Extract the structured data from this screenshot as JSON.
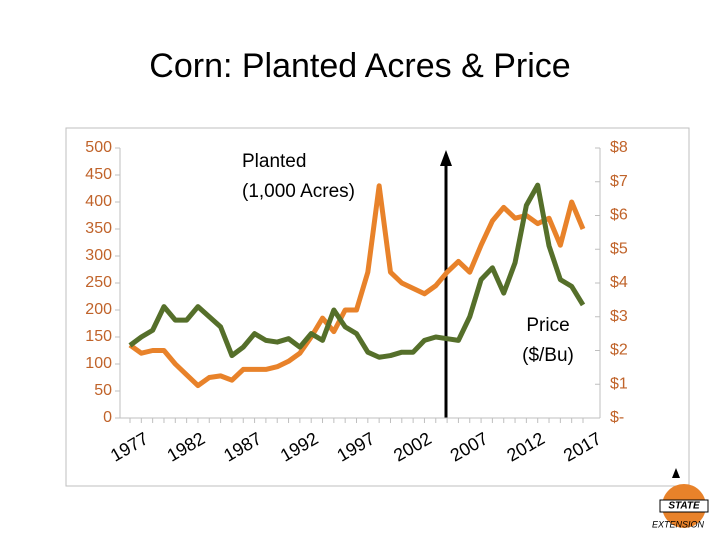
{
  "chart_data": {
    "type": "line",
    "title": "Corn: Planted Acres & Price",
    "x": [
      1977,
      1978,
      1979,
      1980,
      1981,
      1982,
      1983,
      1984,
      1985,
      1986,
      1987,
      1988,
      1989,
      1990,
      1991,
      1992,
      1993,
      1994,
      1995,
      1996,
      1997,
      1998,
      1999,
      2000,
      2001,
      2002,
      2003,
      2004,
      2005,
      2006,
      2007,
      2008,
      2009,
      2010,
      2011,
      2012,
      2013,
      2014,
      2015,
      2016,
      2017
    ],
    "xlim": [
      1977,
      2017
    ],
    "xticks": [
      1977,
      1982,
      1987,
      1992,
      1997,
      2002,
      2007,
      2012,
      2017
    ],
    "ylim": [
      0,
      500
    ],
    "yticks": [
      0,
      50,
      100,
      150,
      200,
      250,
      300,
      350,
      400,
      450,
      500
    ],
    "y2lim": [
      0,
      8
    ],
    "y2ticks": [
      {
        "value": 0,
        "label": "$-"
      },
      {
        "value": 1,
        "label": "$1"
      },
      {
        "value": 2,
        "label": "$2"
      },
      {
        "value": 3,
        "label": "$3"
      },
      {
        "value": 4,
        "label": "$4"
      },
      {
        "value": 5,
        "label": "$5"
      },
      {
        "value": 6,
        "label": "$6"
      },
      {
        "value": 7,
        "label": "$7"
      },
      {
        "value": 8,
        "label": "$8"
      }
    ],
    "axis_color": "#c0632a",
    "series": [
      {
        "color": "#e8822a",
        "values": [
          135,
          120,
          125,
          125,
          100,
          80,
          60,
          75,
          78,
          70,
          90,
          90,
          90,
          95,
          105,
          120,
          150,
          185,
          160,
          200,
          200,
          270,
          430,
          270,
          250,
          240,
          230,
          245,
          270,
          290,
          270,
          320,
          365,
          390,
          370,
          375,
          360,
          370,
          320,
          400,
          350
        ]
      },
      {
        "color": "#556f2a",
        "axis": "y2",
        "values": [
          2.15,
          2.4,
          2.6,
          3.3,
          2.9,
          2.9,
          3.3,
          3.0,
          2.7,
          1.85,
          2.1,
          2.5,
          2.3,
          2.25,
          2.35,
          2.1,
          2.5,
          2.3,
          3.2,
          2.7,
          2.5,
          1.95,
          1.8,
          1.85,
          1.95,
          1.95,
          2.3,
          2.4,
          2.35,
          2.3,
          3.0,
          4.1,
          4.45,
          3.7,
          4.6,
          6.3,
          6.9,
          5.1,
          4.1,
          3.9,
          3.35
        ]
      }
    ],
    "annotations": [
      {
        "lines": [
          "Planted",
          "(1,000 Acres)"
        ]
      },
      {
        "lines": [
          "Price",
          "($/Bu)"
        ]
      }
    ],
    "logo": {
      "text": "STATE",
      "subtext": "EXTENSION"
    }
  }
}
